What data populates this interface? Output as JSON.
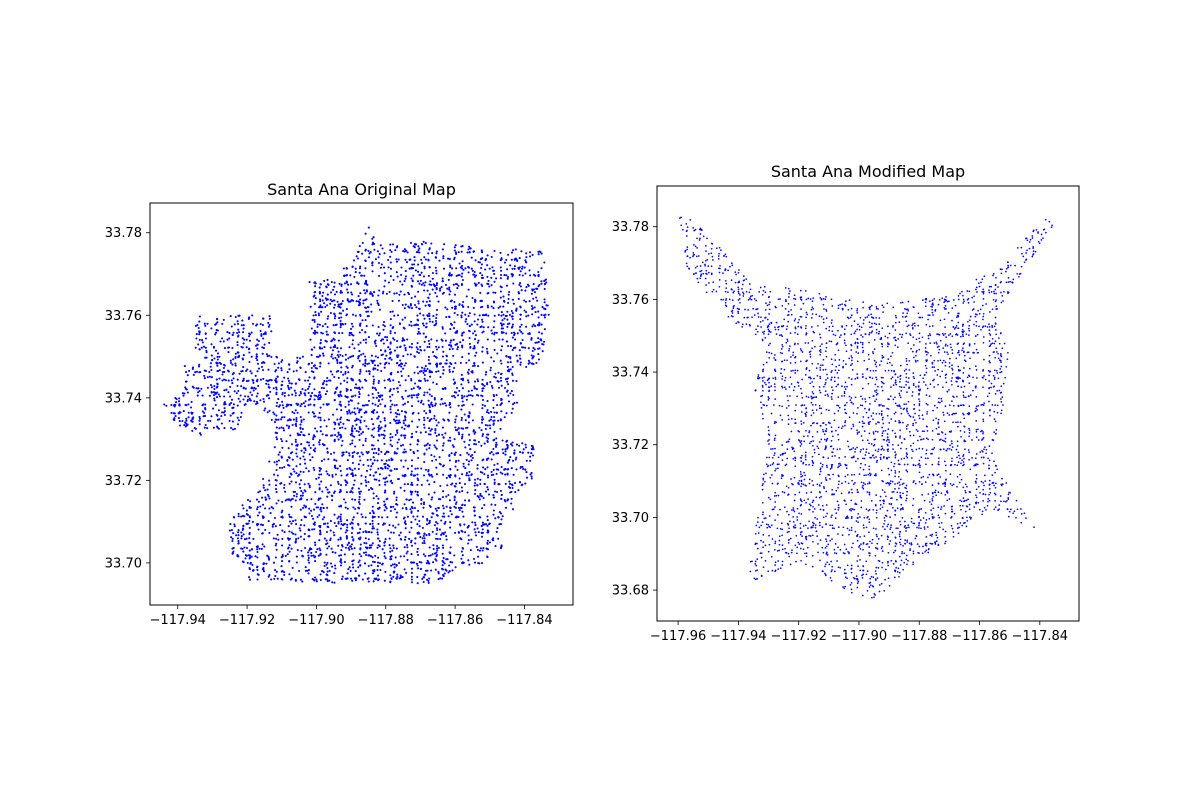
{
  "chart_data": [
    {
      "type": "scatter",
      "title": "Santa Ana Original Map",
      "xlabel": "",
      "ylabel": "",
      "xlim": [
        -117.948,
        -117.826
      ],
      "ylim": [
        33.6898,
        33.7872
      ],
      "xticks": [
        -117.94,
        -117.92,
        -117.9,
        -117.88,
        -117.86,
        -117.84
      ],
      "xtick_labels": [
        "−117.94",
        "−117.92",
        "−117.90",
        "−117.88",
        "−117.86",
        "−117.84"
      ],
      "yticks": [
        33.7,
        33.72,
        33.74,
        33.76,
        33.78
      ],
      "ytick_labels": [
        "33.70",
        "33.72",
        "33.74",
        "33.76",
        "33.78"
      ],
      "grid": false,
      "marker_color": "#0000ff",
      "marker_size": "small",
      "boundary_polygon": [
        [
          -117.944,
          33.7385
        ],
        [
          -117.938,
          33.7425
        ],
        [
          -117.938,
          33.748
        ],
        [
          -117.935,
          33.748
        ],
        [
          -117.935,
          33.76
        ],
        [
          -117.913,
          33.76
        ],
        [
          -117.913,
          33.75
        ],
        [
          -117.902,
          33.75
        ],
        [
          -117.902,
          33.769
        ],
        [
          -117.895,
          33.769
        ],
        [
          -117.889,
          33.774
        ],
        [
          -117.885,
          33.782
        ],
        [
          -117.882,
          33.777
        ],
        [
          -117.868,
          33.778
        ],
        [
          -117.85,
          33.776
        ],
        [
          -117.835,
          33.776
        ],
        [
          -117.834,
          33.772
        ],
        [
          -117.833,
          33.76
        ],
        [
          -117.835,
          33.747
        ],
        [
          -117.842,
          33.747
        ],
        [
          -117.842,
          33.738
        ],
        [
          -117.848,
          33.731
        ],
        [
          -117.836,
          33.728
        ],
        [
          -117.838,
          33.72
        ],
        [
          -117.842,
          33.717
        ],
        [
          -117.843,
          33.713
        ],
        [
          -117.848,
          33.708
        ],
        [
          -117.846,
          33.704
        ],
        [
          -117.852,
          33.7
        ],
        [
          -117.858,
          33.699
        ],
        [
          -117.865,
          33.695
        ],
        [
          -117.899,
          33.695
        ],
        [
          -117.912,
          33.696
        ],
        [
          -117.919,
          33.695
        ],
        [
          -117.921,
          33.698
        ],
        [
          -117.925,
          33.703
        ],
        [
          -117.925,
          33.712
        ],
        [
          -117.917,
          33.717
        ],
        [
          -117.913,
          33.727
        ],
        [
          -117.913,
          33.736
        ],
        [
          -117.92,
          33.738
        ],
        [
          -117.924,
          33.731
        ],
        [
          -117.935,
          33.731
        ],
        [
          -117.944,
          33.735
        ]
      ]
    },
    {
      "type": "scatter",
      "title": "Santa Ana Modified Map",
      "xlabel": "",
      "ylabel": "",
      "xlim": [
        -117.967,
        -117.827
      ],
      "ylim": [
        33.6715,
        33.7912
      ],
      "xticks": [
        -117.96,
        -117.94,
        -117.92,
        -117.9,
        -117.88,
        -117.86,
        -117.84
      ],
      "xtick_labels": [
        "−117.96",
        "−117.94",
        "−117.92",
        "−117.90",
        "−117.88",
        "−117.86",
        "−117.84"
      ],
      "yticks": [
        33.68,
        33.7,
        33.72,
        33.74,
        33.76,
        33.78
      ],
      "ytick_labels": [
        "33.68",
        "33.70",
        "33.72",
        "33.74",
        "33.76",
        "33.78"
      ],
      "grid": false,
      "marker_color": "#0000ff",
      "marker_size": "small",
      "boundary_polygon": [
        [
          -117.96,
          33.785
        ],
        [
          -117.945,
          33.774
        ],
        [
          -117.935,
          33.764
        ],
        [
          -117.92,
          33.763
        ],
        [
          -117.905,
          33.76
        ],
        [
          -117.895,
          33.759
        ],
        [
          -117.88,
          33.76
        ],
        [
          -117.87,
          33.761
        ],
        [
          -117.86,
          33.766
        ],
        [
          -117.85,
          33.773
        ],
        [
          -117.84,
          33.781
        ],
        [
          -117.835,
          33.784
        ],
        [
          -117.836,
          33.779
        ],
        [
          -117.845,
          33.768
        ],
        [
          -117.855,
          33.756
        ],
        [
          -117.85,
          33.744
        ],
        [
          -117.851,
          33.733
        ],
        [
          -117.856,
          33.717
        ],
        [
          -117.848,
          33.705
        ],
        [
          -117.84,
          33.696
        ],
        [
          -117.855,
          33.702
        ],
        [
          -117.865,
          33.697
        ],
        [
          -117.875,
          33.69
        ],
        [
          -117.885,
          33.685
        ],
        [
          -117.895,
          33.677
        ],
        [
          -117.905,
          33.68
        ],
        [
          -117.915,
          33.686
        ],
        [
          -117.925,
          33.686
        ],
        [
          -117.937,
          33.682
        ],
        [
          -117.935,
          33.695
        ],
        [
          -117.932,
          33.71
        ],
        [
          -117.93,
          33.72
        ],
        [
          -117.935,
          33.737
        ],
        [
          -117.93,
          33.747
        ],
        [
          -117.945,
          33.756
        ],
        [
          -117.957,
          33.768
        ]
      ]
    }
  ]
}
